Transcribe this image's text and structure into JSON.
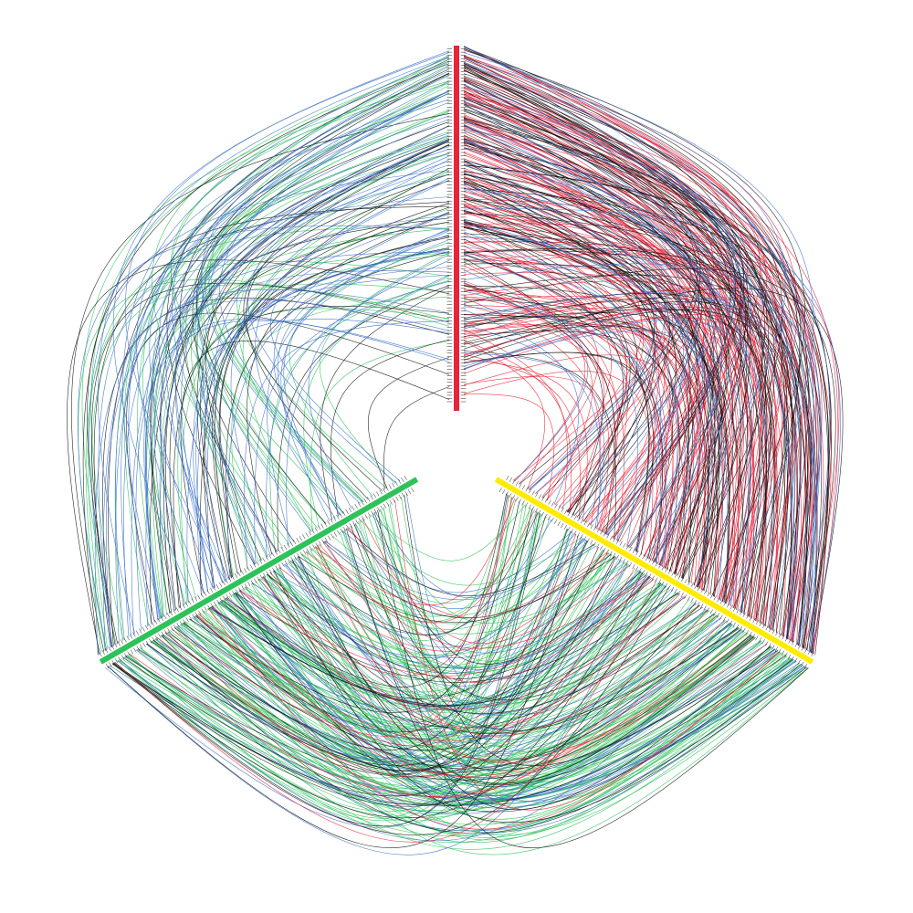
{
  "diagram": {
    "type": "hive-plot",
    "background": "#ffffff",
    "axes": [
      {
        "id": "axis-top",
        "angle_deg": -90,
        "color": "#e8243a",
        "node_count": 110
      },
      {
        "id": "axis-right",
        "angle_deg": 30,
        "color": "#ffeb00",
        "node_count": 95
      },
      {
        "id": "axis-left",
        "angle_deg": 150,
        "color": "#2ec25a",
        "node_count": 100
      }
    ],
    "edge_groups": [
      {
        "name": "top-to-right",
        "from": 0,
        "to": 1,
        "color": "#e8243a",
        "count": 150
      },
      {
        "name": "top-to-right-dark",
        "from": 0,
        "to": 1,
        "color": "#111111",
        "count": 110
      },
      {
        "name": "top-to-right-blue",
        "from": 0,
        "to": 1,
        "color": "#3b6fc9",
        "count": 45
      },
      {
        "name": "top-to-left-green",
        "from": 0,
        "to": 2,
        "color": "#2ec25a",
        "count": 40
      },
      {
        "name": "top-to-left-dark",
        "from": 0,
        "to": 2,
        "color": "#111111",
        "count": 40
      },
      {
        "name": "top-to-left-blue",
        "from": 0,
        "to": 2,
        "color": "#3b6fc9",
        "count": 60
      },
      {
        "name": "left-to-right-green",
        "from": 2,
        "to": 1,
        "color": "#2ec25a",
        "count": 150
      },
      {
        "name": "left-to-right-blue",
        "from": 2,
        "to": 1,
        "color": "#3b6fc9",
        "count": 60
      },
      {
        "name": "left-to-right-dark",
        "from": 2,
        "to": 1,
        "color": "#111111",
        "count": 45
      },
      {
        "name": "left-to-right-red",
        "from": 2,
        "to": 1,
        "color": "#e8243a",
        "count": 25
      }
    ]
  }
}
